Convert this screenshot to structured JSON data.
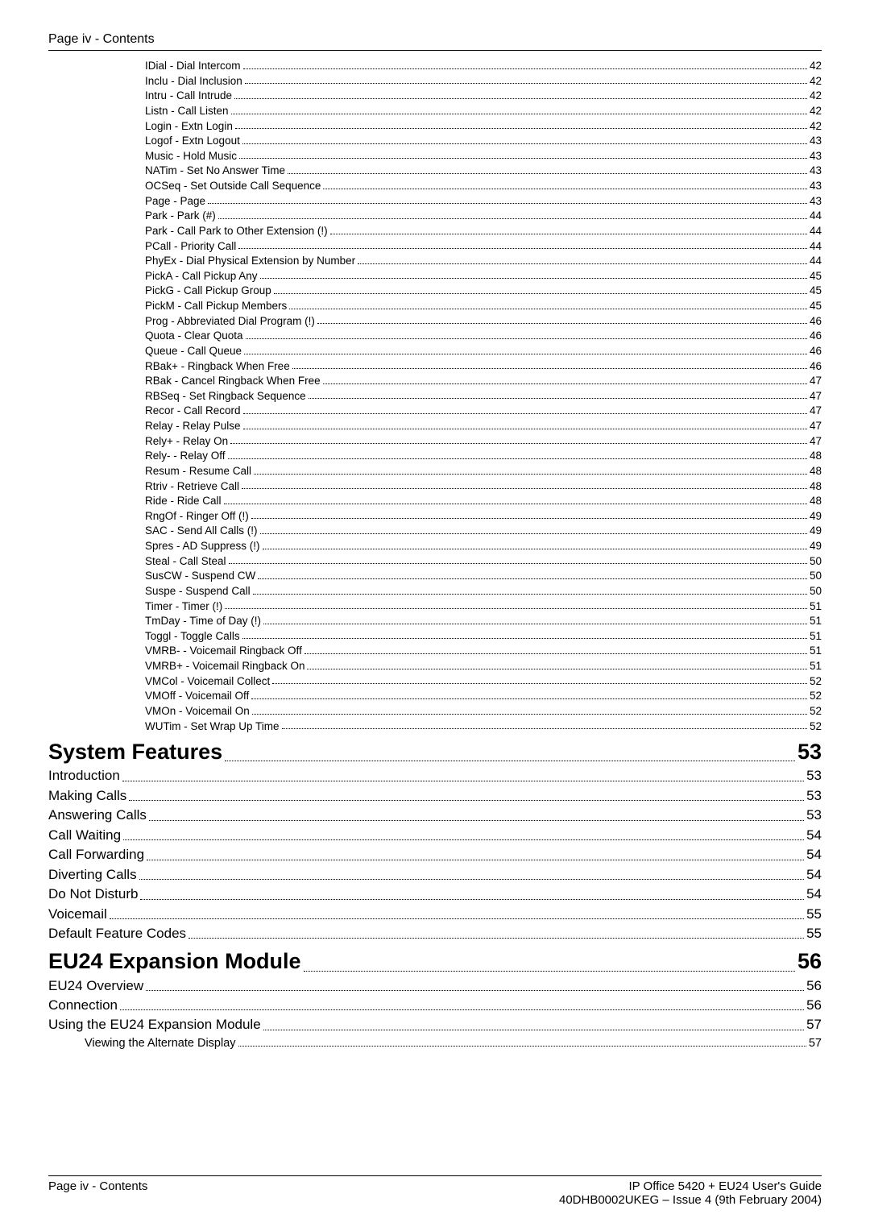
{
  "header": "Page iv - Contents",
  "footer": {
    "left": "Page iv - Contents",
    "right_line1": "IP Office 5420 + EU24 User's Guide",
    "right_line2": "40DHB0002UKEG – Issue 4 (9th February 2004)"
  },
  "toc": [
    {
      "level": "level-3",
      "label": "IDial - Dial Intercom",
      "page": "42"
    },
    {
      "level": "level-3",
      "label": "Inclu - Dial Inclusion",
      "page": "42"
    },
    {
      "level": "level-3",
      "label": "Intru - Call Intrude",
      "page": "42"
    },
    {
      "level": "level-3",
      "label": "Listn - Call Listen",
      "page": "42"
    },
    {
      "level": "level-3",
      "label": "Login - Extn Login",
      "page": "42"
    },
    {
      "level": "level-3",
      "label": "Logof - Extn Logout",
      "page": "43"
    },
    {
      "level": "level-3",
      "label": "Music - Hold Music",
      "page": "43"
    },
    {
      "level": "level-3",
      "label": "NATim - Set No Answer Time",
      "page": "43"
    },
    {
      "level": "level-3",
      "label": "OCSeq - Set Outside Call Sequence",
      "page": "43"
    },
    {
      "level": "level-3",
      "label": "Page - Page",
      "page": "43"
    },
    {
      "level": "level-3",
      "label": "Park - Park (#)",
      "page": "44"
    },
    {
      "level": "level-3",
      "label": "Park - Call Park to Other Extension (!)",
      "page": "44"
    },
    {
      "level": "level-3",
      "label": "PCall - Priority Call",
      "page": "44"
    },
    {
      "level": "level-3",
      "label": "PhyEx - Dial Physical Extension by Number",
      "page": "44"
    },
    {
      "level": "level-3",
      "label": "PickA - Call Pickup Any",
      "page": "45"
    },
    {
      "level": "level-3",
      "label": "PickG - Call Pickup Group",
      "page": "45"
    },
    {
      "level": "level-3",
      "label": "PickM - Call Pickup Members",
      "page": "45"
    },
    {
      "level": "level-3",
      "label": "Prog - Abbreviated Dial Program (!)",
      "page": "46"
    },
    {
      "level": "level-3",
      "label": "Quota - Clear Quota",
      "page": "46"
    },
    {
      "level": "level-3",
      "label": "Queue - Call Queue",
      "page": "46"
    },
    {
      "level": "level-3",
      "label": "RBak+ - Ringback When Free",
      "page": "46"
    },
    {
      "level": "level-3",
      "label": "RBak - Cancel Ringback When Free",
      "page": "47"
    },
    {
      "level": "level-3",
      "label": "RBSeq - Set Ringback Sequence",
      "page": "47"
    },
    {
      "level": "level-3",
      "label": "Recor - Call Record",
      "page": "47"
    },
    {
      "level": "level-3",
      "label": "Relay - Relay Pulse",
      "page": "47"
    },
    {
      "level": "level-3",
      "label": "Rely+ - Relay On",
      "page": "47"
    },
    {
      "level": "level-3",
      "label": "Rely- - Relay Off",
      "page": "48"
    },
    {
      "level": "level-3",
      "label": "Resum - Resume Call",
      "page": "48"
    },
    {
      "level": "level-3",
      "label": "Rtriv - Retrieve Call",
      "page": "48"
    },
    {
      "level": "level-3",
      "label": "Ride - Ride Call",
      "page": "48"
    },
    {
      "level": "level-3",
      "label": "RngOf - Ringer Off (!)",
      "page": "49"
    },
    {
      "level": "level-3",
      "label": "SAC - Send All Calls (!)",
      "page": "49"
    },
    {
      "level": "level-3",
      "label": "Spres - AD Suppress (!)",
      "page": "49"
    },
    {
      "level": "level-3",
      "label": "Steal - Call Steal",
      "page": "50"
    },
    {
      "level": "level-3",
      "label": "SusCW - Suspend CW",
      "page": "50"
    },
    {
      "level": "level-3",
      "label": "Suspe - Suspend Call",
      "page": "50"
    },
    {
      "level": "level-3",
      "label": "Timer - Timer (!)",
      "page": "51"
    },
    {
      "level": "level-3",
      "label": "TmDay - Time of Day (!)",
      "page": "51"
    },
    {
      "level": "level-3",
      "label": "Toggl - Toggle Calls",
      "page": "51"
    },
    {
      "level": "level-3",
      "label": "VMRB- - Voicemail Ringback Off",
      "page": "51"
    },
    {
      "level": "level-3",
      "label": "VMRB+ - Voicemail Ringback On",
      "page": "51"
    },
    {
      "level": "level-3",
      "label": "VMCol - Voicemail Collect",
      "page": "52"
    },
    {
      "level": "level-3",
      "label": "VMOff - Voicemail Off",
      "page": "52"
    },
    {
      "level": "level-3",
      "label": "VMOn - Voicemail On",
      "page": "52"
    },
    {
      "level": "level-3",
      "label": "WUTim - Set Wrap Up Time",
      "page": "52"
    },
    {
      "level": "level-1-bold",
      "label": "System Features",
      "page": "53"
    },
    {
      "level": "level-2",
      "label": "Introduction",
      "page": "53"
    },
    {
      "level": "level-2",
      "label": "Making Calls",
      "page": "53"
    },
    {
      "level": "level-2",
      "label": "Answering Calls",
      "page": "53"
    },
    {
      "level": "level-2",
      "label": "Call Waiting",
      "page": "54"
    },
    {
      "level": "level-2",
      "label": "Call Forwarding",
      "page": "54"
    },
    {
      "level": "level-2",
      "label": "Diverting Calls",
      "page": "54"
    },
    {
      "level": "level-2",
      "label": "Do Not Disturb",
      "page": "54"
    },
    {
      "level": "level-2",
      "label": "Voicemail",
      "page": "55"
    },
    {
      "level": "level-2",
      "label": "Default Feature Codes",
      "page": "55"
    },
    {
      "level": "level-1-bold",
      "label": "EU24 Expansion Module",
      "page": "56"
    },
    {
      "level": "level-2",
      "label": "EU24 Overview",
      "page": "56"
    },
    {
      "level": "level-2",
      "label": "Connection",
      "page": "56"
    },
    {
      "level": "level-2",
      "label": "Using the EU24 Expansion Module",
      "page": "57"
    },
    {
      "level": "level-2b",
      "label": "Viewing the Alternate Display",
      "page": "57"
    }
  ]
}
